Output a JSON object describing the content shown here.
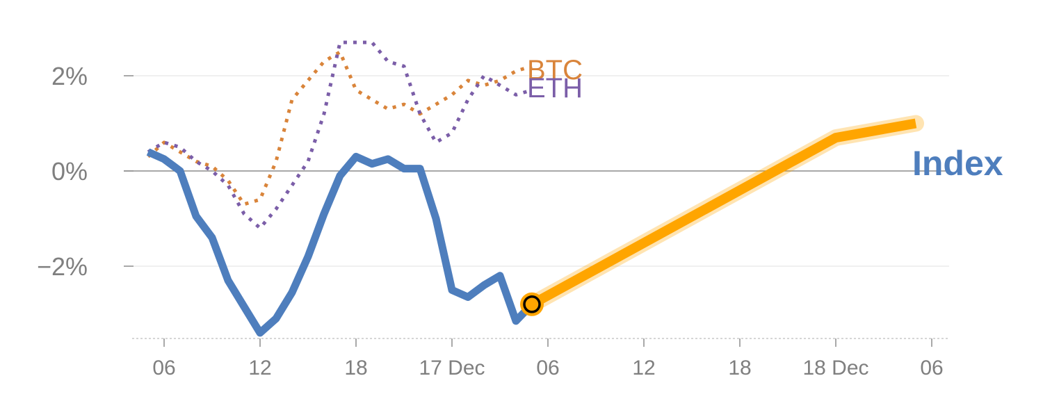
{
  "chart_data": {
    "type": "line",
    "title": "",
    "xlabel": "",
    "ylabel": "",
    "y_unit": "%",
    "ylim": [
      -3.5,
      3.0
    ],
    "grid": true,
    "y_ticks": [
      {
        "value": 2,
        "label": "2%"
      },
      {
        "value": 0,
        "label": "0%"
      },
      {
        "value": -2,
        "label": "−2%"
      }
    ],
    "x_ticks": [
      "06",
      "12",
      "18",
      "17 Dec",
      "06",
      "12",
      "18",
      "18 Dec",
      "06"
    ],
    "series": [
      {
        "name": "BTC",
        "color": "#d9843a",
        "style": "dotted",
        "hour_offsets": [
          -1,
          0,
          1,
          2,
          3,
          4,
          5,
          6,
          7,
          8,
          9,
          10,
          11,
          12,
          13,
          14,
          15,
          16,
          17,
          18,
          19,
          20,
          21,
          22,
          23
        ],
        "values": [
          0.3,
          0.6,
          0.4,
          0.2,
          0.1,
          -0.2,
          -0.7,
          -0.6,
          0.2,
          1.5,
          1.9,
          2.3,
          2.5,
          1.7,
          1.5,
          1.3,
          1.4,
          1.2,
          1.4,
          1.6,
          1.9,
          1.8,
          1.9,
          2.1,
          2.2
        ]
      },
      {
        "name": "ETH",
        "color": "#7b5ea8",
        "style": "dotted",
        "hour_offsets": [
          -1,
          0,
          1,
          2,
          3,
          4,
          5,
          6,
          7,
          8,
          9,
          10,
          11,
          12,
          13,
          14,
          15,
          16,
          17,
          18,
          19,
          20,
          21,
          22,
          23
        ],
        "values": [
          0.4,
          0.6,
          0.5,
          0.2,
          0.0,
          -0.3,
          -0.9,
          -1.2,
          -0.8,
          -0.3,
          0.2,
          1.2,
          2.7,
          2.7,
          2.7,
          2.3,
          2.2,
          1.2,
          0.6,
          0.8,
          1.5,
          2.0,
          1.8,
          1.6,
          1.7
        ]
      },
      {
        "name": "Index",
        "color": "#4e7ebd",
        "style": "solid",
        "hour_offsets": [
          -1,
          0,
          1,
          2,
          3,
          4,
          5,
          6,
          7,
          8,
          9,
          10,
          11,
          12,
          13,
          14,
          15,
          16,
          17,
          18,
          19,
          20,
          21,
          22,
          23
        ],
        "values": [
          0.4,
          0.25,
          0.0,
          -0.95,
          -1.4,
          -2.3,
          -2.85,
          -3.4,
          -3.1,
          -2.55,
          -1.8,
          -0.9,
          -0.1,
          0.3,
          0.15,
          0.25,
          0.05,
          0.05,
          -1.0,
          -2.5,
          -2.65,
          -2.4,
          -2.2,
          -3.15,
          -2.8
        ]
      },
      {
        "name": "",
        "role": "projection",
        "color": "#ffa500",
        "style": "solid",
        "hour_offsets": [
          23,
          42,
          47
        ],
        "values": [
          -2.8,
          0.7,
          1.0
        ]
      }
    ],
    "marker": {
      "hour_offset": 23,
      "value": -2.8,
      "fill": "#ffa500",
      "stroke": "#000000"
    },
    "legend": "inline labels at series ends"
  }
}
